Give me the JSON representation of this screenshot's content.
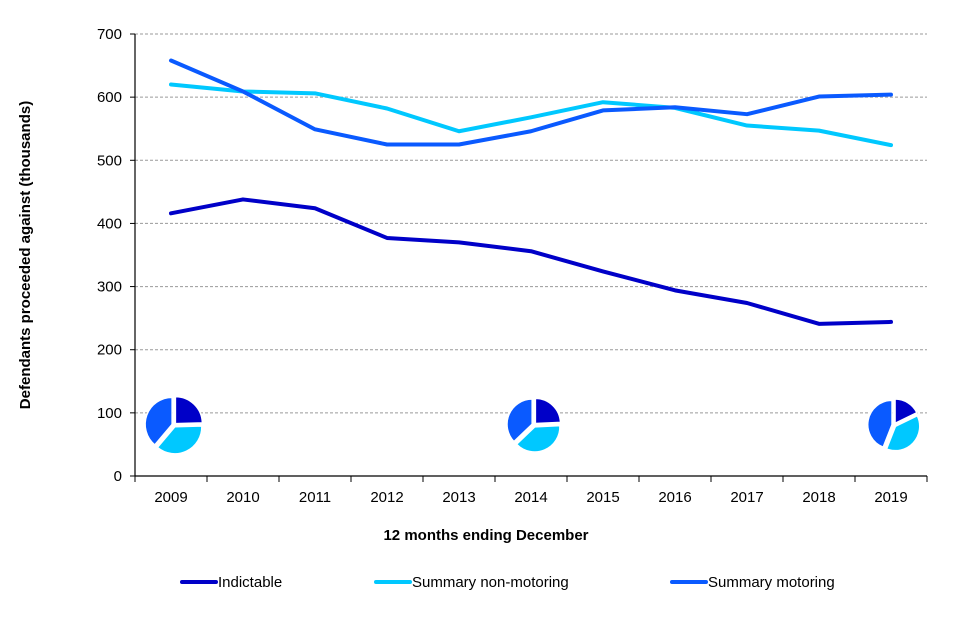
{
  "chart_data": {
    "type": "line",
    "title": "",
    "xlabel": "12 months ending December",
    "ylabel": "Defendants proceeded against (thousands)",
    "ylim": [
      0,
      700
    ],
    "yticks": [
      "0",
      "100",
      "200",
      "300",
      "400",
      "500",
      "600",
      "700"
    ],
    "grid": true,
    "legend_position": "bottom",
    "categories": [
      "2009",
      "2010",
      "2011",
      "2012",
      "2013",
      "2014",
      "2015",
      "2016",
      "2017",
      "2018",
      "2019"
    ],
    "series": [
      {
        "name": "Indictable",
        "color": "#0000c8",
        "values": [
          416,
          438,
          424,
          377,
          370,
          356,
          324,
          294,
          274,
          241,
          244
        ]
      },
      {
        "name": "Summary non-motoring",
        "color": "#00c8ff",
        "values": [
          620,
          609,
          606,
          582,
          546,
          568,
          592,
          583,
          555,
          547,
          524
        ]
      },
      {
        "name": "Summary motoring",
        "color": "#0a5aff",
        "values": [
          658,
          609,
          549,
          525,
          525,
          546,
          579,
          584,
          573,
          601,
          604
        ]
      }
    ],
    "pie_years": [
      "2009",
      "2014",
      "2019"
    ]
  }
}
